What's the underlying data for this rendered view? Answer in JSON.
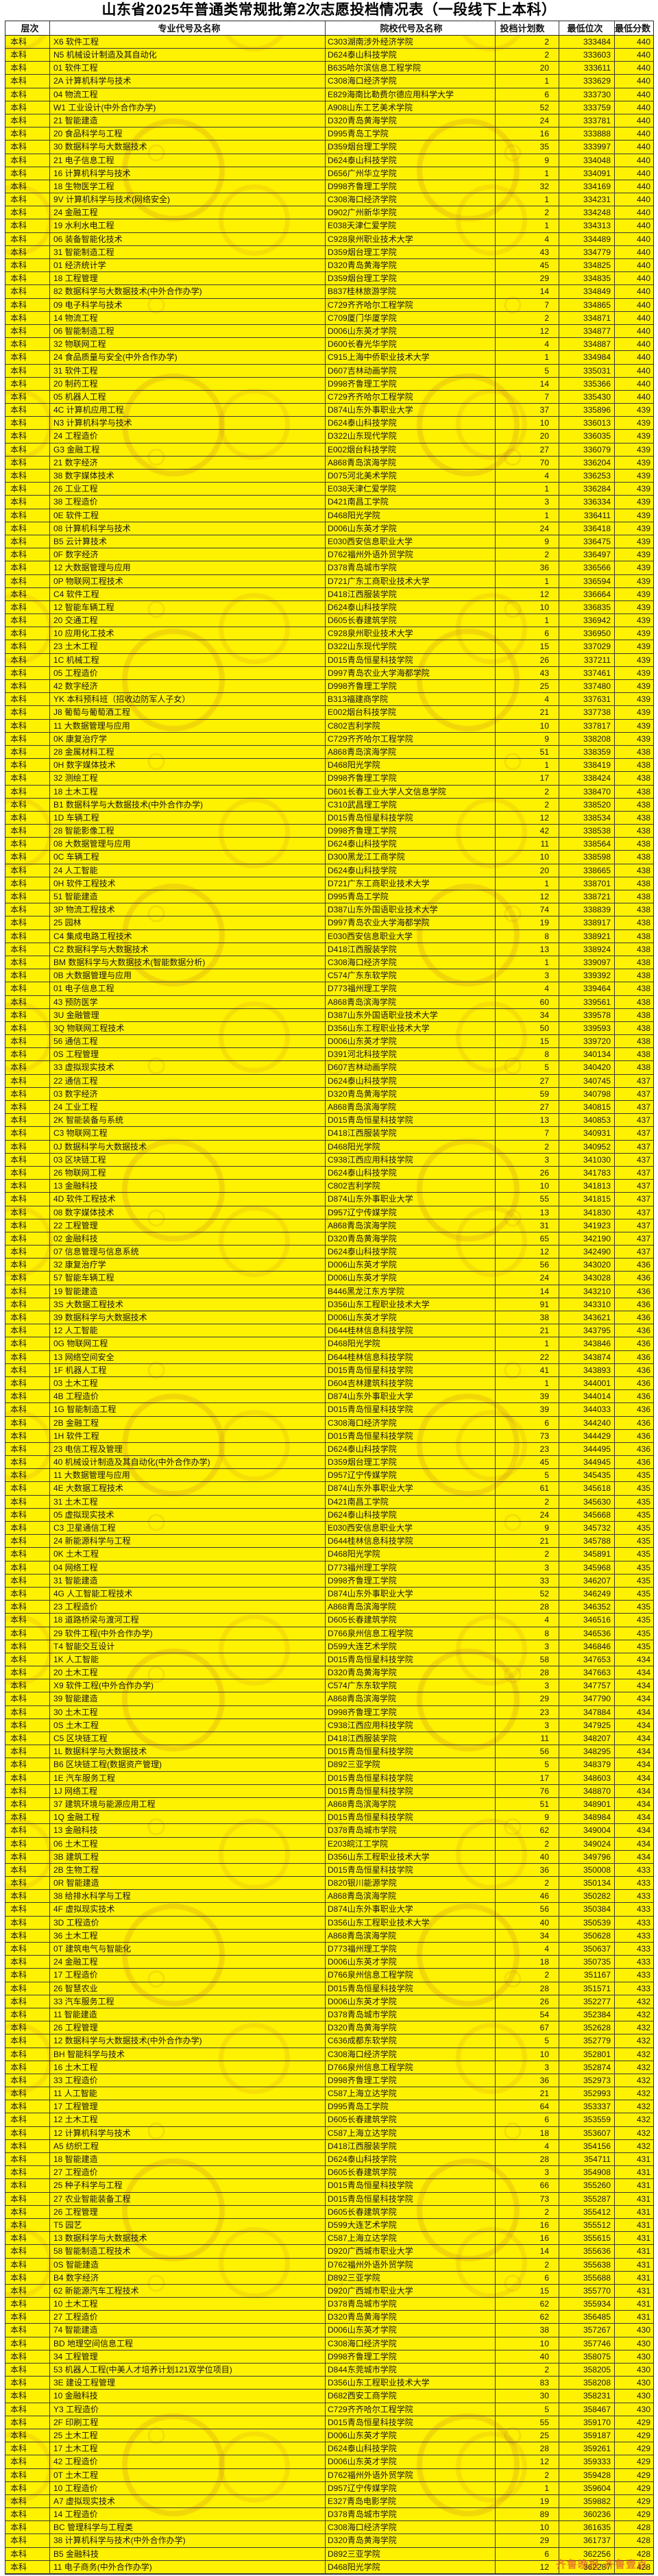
{
  "title": "山东省2025年普通类常规批第2次志愿投档情况表（一段线下上本科）",
  "watermark_red": "齐鲁晚报·齐鲁壹点",
  "colors": {
    "row_yellow": "#fff200",
    "border": "#2b2b2b",
    "stamp_orange": "#c98a1e",
    "watermark_red": "#d63c3c"
  },
  "table": {
    "columns": [
      "层次",
      "专业代号及名称",
      "院校代号及名称",
      "投档计划数",
      "最低位次",
      "最低分数"
    ],
    "level_label": "本科",
    "rows": [
      [
        "X6 软件工程",
        "C303湖南涉外经济学院",
        2,
        333484,
        440
      ],
      [
        "N5 机械设计制造及其自动化",
        "D624泰山科技学院",
        2,
        333603,
        440
      ],
      [
        "01 软件工程",
        "B635哈尔滨信息工程学院",
        20,
        333611,
        440
      ],
      [
        "2A 计算机科学与技术",
        "C308海口经济学院",
        1,
        333629,
        440
      ],
      [
        "04 物流工程",
        "E829海南比勒费尔德应用科学大学",
        6,
        333730,
        440
      ],
      [
        "W1 工业设计(中外合作办学)",
        "A908山东工艺美术学院",
        52,
        333759,
        440
      ],
      [
        "21 智能建造",
        "D320青岛黄海学院",
        24,
        333781,
        440
      ],
      [
        "20 食品科学与工程",
        "D995青岛工学院",
        16,
        333888,
        440
      ],
      [
        "30 数据科学与大数据技术",
        "D359烟台理工学院",
        35,
        333997,
        440
      ],
      [
        "21 电子信息工程",
        "D624泰山科技学院",
        9,
        334048,
        440
      ],
      [
        "16 计算机科学与技术",
        "D656广州华立学院",
        1,
        334091,
        440
      ],
      [
        "18 生物医学工程",
        "D998齐鲁理工学院",
        32,
        334169,
        440
      ],
      [
        "9V 计算机科学与技术(网络安全)",
        "C308海口经济学院",
        1,
        334231,
        440
      ],
      [
        "24 金融工程",
        "D902广州新华学院",
        2,
        334248,
        440
      ],
      [
        "19 水利水电工程",
        "E038天津仁爱学院",
        1,
        334313,
        440
      ],
      [
        "06 装备智能化技术",
        "C928泉州职业技术大学",
        4,
        334489,
        440
      ],
      [
        "31 智能制造工程",
        "D359烟台理工学院",
        43,
        334779,
        440
      ],
      [
        "01 经济统计学",
        "D320青岛黄海学院",
        45,
        334825,
        440
      ],
      [
        "18 工程管理",
        "D359烟台理工学院",
        29,
        334835,
        440
      ],
      [
        "82 数据科学与大数据技术(中外合作办学)",
        "B837桂林旅游学院",
        14,
        334849,
        440
      ],
      [
        "09 电子科学与技术",
        "C729齐齐哈尔工程学院",
        7,
        334865,
        440
      ],
      [
        "14 物流工程",
        "C709厦门华厦学院",
        2,
        334871,
        440
      ],
      [
        "06 智能制造工程",
        "D006山东英才学院",
        12,
        334877,
        440
      ],
      [
        "32 物联网工程",
        "D600长春光华学院",
        4,
        334887,
        440
      ],
      [
        "24 食品质量与安全(中外合作办学)",
        "C915上海中侨职业技术大学",
        1,
        334984,
        440
      ],
      [
        "31 软件工程",
        "D607吉林动画学院",
        5,
        335031,
        440
      ],
      [
        "20 制药工程",
        "D998齐鲁理工学院",
        14,
        335366,
        440
      ],
      [
        "05 机器人工程",
        "C729齐齐哈尔工程学院",
        7,
        335430,
        440
      ],
      [
        "4C 计算机应用工程",
        "D874山东外事职业大学",
        37,
        335896,
        439
      ],
      [
        "N3 计算机科学与技术",
        "D624泰山科技学院",
        10,
        336013,
        439
      ],
      [
        "24 工程造价",
        "D322山东现代学院",
        20,
        336035,
        439
      ],
      [
        "G3 金融工程",
        "E002烟台科技学院",
        27,
        336079,
        439
      ],
      [
        "21 数字经济",
        "A868青岛滨海学院",
        70,
        336204,
        439
      ],
      [
        "38 数字媒体技术",
        "D075河北美术学院",
        4,
        336253,
        439
      ],
      [
        "26 工业工程",
        "E038天津仁爱学院",
        1,
        336284,
        439
      ],
      [
        "38 工程造价",
        "D421南昌工学院",
        3,
        336334,
        439
      ],
      [
        "0E 软件工程",
        "D468阳光学院",
        1,
        336411,
        439
      ],
      [
        "08 计算机科学与技术",
        "D006山东英才学院",
        24,
        336418,
        439
      ],
      [
        "B5 云计算技术",
        "E030西安信息职业大学",
        9,
        336475,
        439
      ],
      [
        "0F 数字经济",
        "D762福州外语外贸学院",
        2,
        336497,
        439
      ],
      [
        "12 大数据管理与应用",
        "D378青岛城市学院",
        36,
        336566,
        439
      ],
      [
        "0P 物联网工程技术",
        "D721广东工商职业技术大学",
        1,
        336594,
        439
      ],
      [
        "C4 软件工程",
        "D418江西服装学院",
        12,
        336664,
        439
      ],
      [
        "12 智能车辆工程",
        "D624泰山科技学院",
        10,
        336835,
        439
      ],
      [
        "20 交通工程",
        "D605长春建筑学院",
        1,
        336942,
        439
      ],
      [
        "10 应用化工技术",
        "C928泉州职业技术大学",
        6,
        336950,
        439
      ],
      [
        "23 土木工程",
        "D322山东现代学院",
        15,
        337029,
        439
      ],
      [
        "1C 机械工程",
        "D015青岛恒星科技学院",
        26,
        337211,
        439
      ],
      [
        "05 工程造价",
        "D997青岛农业大学海都学院",
        43,
        337461,
        439
      ],
      [
        "42 数字经济",
        "D998齐鲁理工学院",
        25,
        337480,
        439
      ],
      [
        "YK 本科预科班（招收边防军人子女）",
        "B313福建商学院",
        4,
        337631,
        439
      ],
      [
        "J8 葡萄与葡萄酒工程",
        "E002烟台科技学院",
        21,
        337738,
        439
      ],
      [
        "11 大数据管理与应用",
        "C802吉利学院",
        10,
        337817,
        439
      ],
      [
        "0K 康复治疗学",
        "C729齐齐哈尔工程学院",
        9,
        338208,
        439
      ],
      [
        "28 金属材料工程",
        "A868青岛滨海学院",
        51,
        338359,
        438
      ],
      [
        "0H 数字媒体技术",
        "D468阳光学院",
        1,
        338419,
        438
      ],
      [
        "32 测绘工程",
        "D998齐鲁理工学院",
        17,
        338424,
        438
      ],
      [
        "18 土木工程",
        "D601长春工业大学人文信息学院",
        2,
        338470,
        438
      ],
      [
        "B1 数据科学与大数据技术(中外合作办学)",
        "C310武昌理工学院",
        2,
        338520,
        438
      ],
      [
        "1D 车辆工程",
        "D015青岛恒星科技学院",
        12,
        338534,
        438
      ],
      [
        "28 智能影像工程",
        "D998齐鲁理工学院",
        42,
        338538,
        438
      ],
      [
        "08 大数据管理与应用",
        "D624泰山科技学院",
        11,
        338564,
        438
      ],
      [
        "0C 车辆工程",
        "D300黑龙江工商学院",
        10,
        338598,
        438
      ],
      [
        "24 人工智能",
        "D624泰山科技学院",
        20,
        338665,
        438
      ],
      [
        "0H 软件工程技术",
        "D721广东工商职业技术大学",
        1,
        338701,
        438
      ],
      [
        "51 智能建造",
        "D995青岛工学院",
        12,
        338721,
        438
      ],
      [
        "3P 物流工程技术",
        "D387山东外国语职业技术大学",
        74,
        338839,
        438
      ],
      [
        "25 园林",
        "D997青岛农业大学海都学院",
        19,
        338917,
        438
      ],
      [
        "C4 集成电路工程技术",
        "E030西安信息职业大学",
        8,
        338921,
        438
      ],
      [
        "C2 数据科学与大数据技术",
        "D418江西服装学院",
        13,
        338924,
        438
      ],
      [
        "BM 数据科学与大数据技术(智能数据分析)",
        "C308海口经济学院",
        1,
        339097,
        438
      ],
      [
        "0B 大数据管理与应用",
        "C574广东东软学院",
        3,
        339392,
        438
      ],
      [
        "01 电子信息工程",
        "D773福州理工学院",
        4,
        339464,
        438
      ],
      [
        "43 预防医学",
        "A868青岛滨海学院",
        60,
        339561,
        438
      ],
      [
        "3U 金融管理",
        "D387山东外国语职业技术大学",
        34,
        339578,
        438
      ],
      [
        "3Q 物联网工程技术",
        "D356山东工程职业技术大学",
        50,
        339593,
        438
      ],
      [
        "56 通信工程",
        "D006山东英才学院",
        15,
        339720,
        438
      ],
      [
        "0S 工程管理",
        "D391河北科技学院",
        8,
        340134,
        438
      ],
      [
        "33 虚拟现实技术",
        "D607吉林动画学院",
        5,
        340420,
        438
      ],
      [
        "22 通信工程",
        "D624泰山科技学院",
        27,
        340745,
        437
      ],
      [
        "03 数字经济",
        "D320青岛黄海学院",
        59,
        340798,
        437
      ],
      [
        "24 工业工程",
        "A868青岛滨海学院",
        27,
        340815,
        437
      ],
      [
        "2K 智能装备与系统",
        "D015青岛恒星科技学院",
        13,
        340853,
        437
      ],
      [
        "C3 物联网工程",
        "D418江西服装学院",
        7,
        340931,
        437
      ],
      [
        "0J 数据科学与大数据技术",
        "D468阳光学院",
        2,
        340952,
        437
      ],
      [
        "03 区块链工程",
        "C938江西应用科技学院",
        3,
        341030,
        437
      ],
      [
        "26 物联网工程",
        "D624泰山科技学院",
        26,
        341783,
        437
      ],
      [
        "13 金融科技",
        "C802吉利学院",
        10,
        341813,
        437
      ],
      [
        "4D 软件工程技术",
        "D874山东外事职业大学",
        55,
        341815,
        437
      ],
      [
        "08 数字媒体技术",
        "D957辽宁传媒学院",
        13,
        341830,
        437
      ],
      [
        "22 工程管理",
        "A868青岛滨海学院",
        31,
        341923,
        437
      ],
      [
        "02 金融科技",
        "D320青岛黄海学院",
        65,
        342190,
        437
      ],
      [
        "07 信息管理与信息系统",
        "D624泰山科技学院",
        12,
        342490,
        437
      ],
      [
        "32 康复治疗学",
        "D006山东英才学院",
        56,
        343020,
        436
      ],
      [
        "57 智能车辆工程",
        "D006山东英才学院",
        24,
        343028,
        436
      ],
      [
        "19 智能建造",
        "B446黑龙江东方学院",
        14,
        343210,
        436
      ],
      [
        "3S 大数据工程技术",
        "D356山东工程职业技术大学",
        91,
        343310,
        436
      ],
      [
        "39 数据科学与大数据技术",
        "D006山东英才学院",
        38,
        343621,
        436
      ],
      [
        "12 人工智能",
        "D644桂林信息科技学院",
        21,
        343795,
        436
      ],
      [
        "0G 物联网工程",
        "D468阳光学院",
        1,
        343846,
        436
      ],
      [
        "13 网络空间安全",
        "D644桂林信息科技学院",
        22,
        343874,
        436
      ],
      [
        "1F 机器人工程",
        "D015青岛恒星科技学院",
        41,
        343893,
        436
      ],
      [
        "03 土木工程",
        "D604吉林建筑科技学院",
        1,
        344001,
        436
      ],
      [
        "4B 工程造价",
        "D874山东外事职业大学",
        39,
        344014,
        436
      ],
      [
        "1G 智能制造工程",
        "D015青岛恒星科技学院",
        39,
        344033,
        436
      ],
      [
        "2B 金融工程",
        "C308海口经济学院",
        6,
        344240,
        436
      ],
      [
        "1H 软件工程",
        "D015青岛恒星科技学院",
        73,
        344429,
        436
      ],
      [
        "23 电信工程及管理",
        "D624泰山科技学院",
        23,
        344495,
        436
      ],
      [
        "40 机械设计制造及其自动化(中外合作办学)",
        "D359烟台理工学院",
        45,
        344945,
        436
      ],
      [
        "11 大数据管理与应用",
        "D957辽宁传媒学院",
        5,
        345435,
        435
      ],
      [
        "4E 大数据工程技术",
        "D874山东外事职业大学",
        61,
        345618,
        435
      ],
      [
        "31 土木工程",
        "D421南昌工学院",
        2,
        345630,
        435
      ],
      [
        "05 虚拟现实技术",
        "D624泰山科技学院",
        24,
        345668,
        435
      ],
      [
        "C3 卫星通信工程",
        "E030西安信息职业大学",
        9,
        345732,
        435
      ],
      [
        "24 新能源科学与工程",
        "D644桂林信息科技学院",
        21,
        345788,
        435
      ],
      [
        "0K 土木工程",
        "D468阳光学院",
        2,
        345891,
        435
      ],
      [
        "04 网络工程",
        "D773福州理工学院",
        3,
        345968,
        435
      ],
      [
        "31 智能建造",
        "D998齐鲁理工学院",
        33,
        346207,
        435
      ],
      [
        "4G 人工智能工程技术",
        "D874山东外事职业大学",
        52,
        346249,
        435
      ],
      [
        "23 工程造价",
        "A868青岛滨海学院",
        28,
        346352,
        435
      ],
      [
        "18 道路桥梁与渡河工程",
        "D605长春建筑学院",
        4,
        346516,
        435
      ],
      [
        "29 软件工程(中外合作办学)",
        "D766泉州信息工程学院",
        8,
        346536,
        435
      ],
      [
        "T4 智能交互设计",
        "D599大连艺术学院",
        3,
        346846,
        435
      ],
      [
        "1K 人工智能",
        "D015青岛恒星科技学院",
        58,
        347653,
        434
      ],
      [
        "20 土木工程",
        "D320青岛黄海学院",
        28,
        347663,
        434
      ],
      [
        "X9 软件工程(中外合作办学)",
        "C574广东东软学院",
        3,
        347757,
        434
      ],
      [
        "39 智能建造",
        "A868青岛滨海学院",
        29,
        347790,
        434
      ],
      [
        "30 土木工程",
        "D998齐鲁理工学院",
        23,
        347884,
        434
      ],
      [
        "0S 土木工程",
        "C938江西应用科技学院",
        3,
        347925,
        434
      ],
      [
        "C5 区块链工程",
        "D418江西服装学院",
        11,
        348207,
        434
      ],
      [
        "1L 数据科学与大数据技术",
        "D015青岛恒星科技学院",
        56,
        348295,
        434
      ],
      [
        "B6 区块链工程(数据资产管理)",
        "D892三亚学院",
        5,
        348379,
        434
      ],
      [
        "1E 汽车服务工程",
        "D015青岛恒星科技学院",
        17,
        348603,
        434
      ],
      [
        "1J 网络工程",
        "D015青岛恒星科技学院",
        76,
        348870,
        434
      ],
      [
        "37 建筑环境与能源应用工程",
        "A868青岛滨海学院",
        51,
        348901,
        434
      ],
      [
        "1Q 金融工程",
        "D015青岛恒星科技学院",
        9,
        348984,
        434
      ],
      [
        "13 金融科技",
        "D378青岛城市学院",
        62,
        349004,
        434
      ],
      [
        "06 土木工程",
        "E203皖江工学院",
        2,
        349024,
        434
      ],
      [
        "3B 建筑工程",
        "D356山东工程职业技术大学",
        40,
        349796,
        434
      ],
      [
        "2B 生物工程",
        "D015青岛恒星科技学院",
        36,
        350008,
        433
      ],
      [
        "0R 智能建造",
        "D820银川能源学院",
        2,
        350134,
        433
      ],
      [
        "38 给排水科学与工程",
        "A868青岛滨海学院",
        46,
        350282,
        433
      ],
      [
        "4F 虚拟现实技术",
        "D874山东外事职业大学",
        56,
        350384,
        433
      ],
      [
        "3D 工程造价",
        "D356山东工程职业技术大学",
        40,
        350539,
        433
      ],
      [
        "36 土木工程",
        "A868青岛滨海学院",
        34,
        350628,
        433
      ],
      [
        "0T 建筑电气与智能化",
        "D773福州理工学院",
        4,
        350637,
        433
      ],
      [
        "24 金融工程",
        "D006山东英才学院",
        18,
        350735,
        433
      ],
      [
        "17 工程造价",
        "D766泉州信息工程学院",
        2,
        351167,
        433
      ],
      [
        "26 智慧农业",
        "D015青岛恒星科技学院",
        28,
        351571,
        433
      ],
      [
        "33 汽车服务工程",
        "D006山东英才学院",
        26,
        352277,
        432
      ],
      [
        "11 智能建造",
        "D378青岛城市学院",
        54,
        352384,
        432
      ],
      [
        "26 工程管理",
        "D320青岛黄海学院",
        67,
        352628,
        432
      ],
      [
        "12 数据科学与大数据技术(中外合作办学)",
        "C636成都东软学院",
        5,
        352779,
        432
      ],
      [
        "BH 智能科学与技术",
        "C308海口经济学院",
        10,
        352801,
        432
      ],
      [
        "16 土木工程",
        "D766泉州信息工程学院",
        3,
        352874,
        432
      ],
      [
        "33 工程造价",
        "D998齐鲁理工学院",
        36,
        352973,
        432
      ],
      [
        "11 人工智能",
        "C587上海立达学院",
        21,
        352993,
        432
      ],
      [
        "17 工程管理",
        "D995青岛工学院",
        64,
        353337,
        432
      ],
      [
        "12 土木工程",
        "D605长春建筑学院",
        6,
        353559,
        432
      ],
      [
        "12 计算机科学与技术",
        "C587上海立达学院",
        18,
        353607,
        432
      ],
      [
        "A5 纺织工程",
        "D418江西服装学院",
        4,
        354156,
        432
      ],
      [
        "18 智能建造",
        "D624泰山科技学院",
        28,
        354711,
        431
      ],
      [
        "27 工程造价",
        "D605长春建筑学院",
        3,
        354908,
        431
      ],
      [
        "25 种子科学与工程",
        "D015青岛恒星科技学院",
        66,
        355260,
        431
      ],
      [
        "27 农业智能装备工程",
        "D015青岛恒星科技学院",
        73,
        355287,
        431
      ],
      [
        "26 工程管理",
        "D605长春建筑学院",
        2,
        355412,
        431
      ],
      [
        "T5 园艺",
        "D599大连艺术学院",
        16,
        355512,
        431
      ],
      [
        "13 数据科学与大数据技术",
        "C587上海立达学院",
        16,
        355615,
        431
      ],
      [
        "58 智能制造工程技术",
        "D920广西城市职业大学",
        14,
        355636,
        431
      ],
      [
        "0S 智能建造",
        "D762福州外语外贸学院",
        2,
        355638,
        431
      ],
      [
        "B4 数字经济",
        "D892三亚学院",
        6,
        355688,
        431
      ],
      [
        "62 新能源汽车工程技术",
        "D920广西城市职业大学",
        15,
        355770,
        431
      ],
      [
        "10 土木工程",
        "D378青岛城市学院",
        62,
        355934,
        431
      ],
      [
        "27 工程造价",
        "D320青岛黄海学院",
        62,
        356485,
        431
      ],
      [
        "74 智能建造",
        "D006山东英才学院",
        38,
        357267,
        430
      ],
      [
        "BD 地理空间信息工程",
        "C308海口经济学院",
        10,
        357746,
        430
      ],
      [
        "34 工程管理",
        "D998齐鲁理工学院",
        40,
        358075,
        430
      ],
      [
        "53 机器人工程(中美人才培养计划121双学位项目)",
        "D844东莞城市学院",
        2,
        358205,
        430
      ],
      [
        "3E 建设工程管理",
        "D356山东工程职业技术大学",
        83,
        358208,
        430
      ],
      [
        "10 金融科技",
        "D682西安工商学院",
        30,
        358231,
        430
      ],
      [
        "Y3 工程造价",
        "C729齐齐哈尔工程学院",
        5,
        358467,
        430
      ],
      [
        "2F 印刷工程",
        "D015青岛恒星科技学院",
        55,
        359170,
        429
      ],
      [
        "25 土木工程",
        "D006山东英才学院",
        25,
        359187,
        429
      ],
      [
        "17 土木工程",
        "D624泰山科技学院",
        28,
        359261,
        429
      ],
      [
        "42 工程造价",
        "D006山东英才学院",
        12,
        359333,
        429
      ],
      [
        "0T 土木工程",
        "D762福州外语外贸学院",
        2,
        359428,
        429
      ],
      [
        "10 工程造价",
        "D957辽宁传媒学院",
        1,
        359604,
        429
      ],
      [
        "A7 虚拟现实技术",
        "E327青岛电影学院",
        19,
        359882,
        429
      ],
      [
        "14 工程造价",
        "D378青岛城市学院",
        89,
        360236,
        429
      ],
      [
        "BC 管理科学与工程类",
        "C308海口经济学院",
        10,
        361635,
        428
      ],
      [
        "38 计算机科学与技术(中外合作办学)",
        "D320青岛黄海学院",
        29,
        361737,
        428
      ],
      [
        "B5 金融科技",
        "D892三亚学院",
        6,
        362256,
        428
      ],
      [
        "11 电子商务(中外合作办学)",
        "D468阳光学院",
        12,
        362287,
        428
      ]
    ]
  }
}
